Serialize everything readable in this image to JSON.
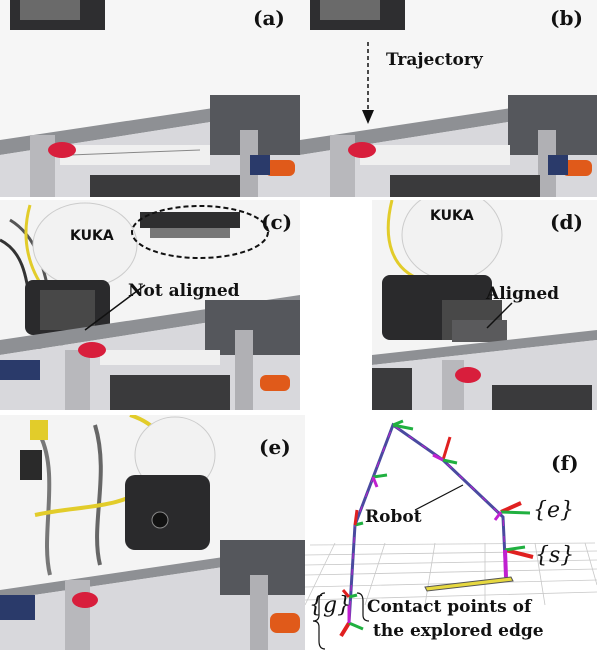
{
  "panels": {
    "a": {
      "label": "(a)"
    },
    "b": {
      "label": "(b)",
      "annotation": "Trajectory"
    },
    "c": {
      "label": "(c)",
      "annotation": "Not aligned"
    },
    "d": {
      "label": "(d)",
      "annotation": "Aligned"
    },
    "e": {
      "label": "(e)"
    },
    "f": {
      "label": "(f)",
      "robot_label": "Robot",
      "frame_e": "{e}",
      "frame_s": "{s}",
      "frame_g": "{g}",
      "contact_line1": "Contact points of",
      "contact_line2": "the explored edge"
    }
  },
  "colors": {
    "background": "#ffffff",
    "rail": "#9a9aa0",
    "dark_block": "#3c3c40",
    "clip_red": "#d81e3c",
    "screwdriver_orange": "#e05a1a",
    "robot_white": "#f2f2f2",
    "cable_yellow": "#e2cc2a",
    "skeleton_blue": "#4a4aa0",
    "frame_red": "#e02020",
    "frame_green": "#20b040",
    "frame_magenta": "#c020d0",
    "edge_yellow": "#e6d840"
  }
}
